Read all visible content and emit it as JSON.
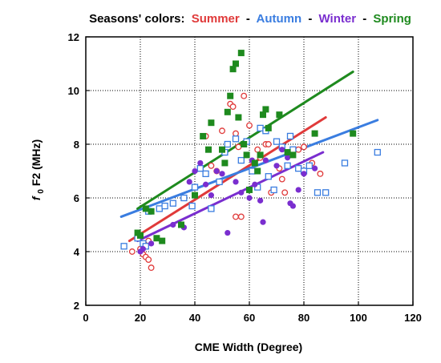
{
  "chart_data": {
    "type": "scatter",
    "legend_title": "Seasons' colors:",
    "separator": "-",
    "xlabel": "CME Width (Degree)",
    "ylabel_main": "f",
    "ylabel_sub": "0",
    "ylabel_rest": "F2 (MHz)",
    "xlim": [
      0,
      120
    ],
    "ylim": [
      2,
      12
    ],
    "x_ticks": [
      0,
      20,
      40,
      60,
      80,
      100,
      120
    ],
    "y_ticks": [
      2,
      4,
      6,
      8,
      10,
      12
    ],
    "grid": "dotted",
    "legend_position": "top",
    "series": [
      {
        "name": "Summer",
        "color": "#e03a3a",
        "marker": "open-circle",
        "points": [
          [
            17,
            4.0
          ],
          [
            20,
            4.1
          ],
          [
            21,
            3.9
          ],
          [
            22,
            3.8
          ],
          [
            23,
            3.7
          ],
          [
            24,
            3.4
          ],
          [
            21,
            4.2
          ],
          [
            23,
            4.4
          ],
          [
            44,
            8.3
          ],
          [
            46,
            7.2
          ],
          [
            48,
            7.0
          ],
          [
            50,
            8.5
          ],
          [
            53,
            9.5
          ],
          [
            54,
            9.4
          ],
          [
            55,
            8.4
          ],
          [
            56,
            7.9
          ],
          [
            58,
            9.8
          ],
          [
            60,
            8.7
          ],
          [
            55,
            5.3
          ],
          [
            57,
            5.3
          ],
          [
            63,
            7.8
          ],
          [
            64,
            7.5
          ],
          [
            66,
            8.0
          ],
          [
            67,
            8.0
          ],
          [
            68,
            6.2
          ],
          [
            71,
            7.1
          ],
          [
            72,
            6.7
          ],
          [
            73,
            6.2
          ],
          [
            78,
            7.8
          ],
          [
            80,
            7.9
          ],
          [
            83,
            7.3
          ],
          [
            84,
            8.4
          ],
          [
            86,
            6.9
          ]
        ]
      },
      {
        "name": "Autumn",
        "color": "#3a7de0",
        "marker": "open-square",
        "points": [
          [
            14,
            4.2
          ],
          [
            19,
            4.5
          ],
          [
            21,
            4.3
          ],
          [
            22,
            4.2
          ],
          [
            23,
            5.5
          ],
          [
            27,
            5.6
          ],
          [
            29,
            5.7
          ],
          [
            32,
            5.8
          ],
          [
            36,
            6.0
          ],
          [
            39,
            5.7
          ],
          [
            40,
            6.4
          ],
          [
            42,
            7.1
          ],
          [
            44,
            6.9
          ],
          [
            46,
            5.6
          ],
          [
            49,
            6.6
          ],
          [
            51,
            7.7
          ],
          [
            52,
            8.0
          ],
          [
            55,
            8.2
          ],
          [
            57,
            7.4
          ],
          [
            59,
            8.1
          ],
          [
            61,
            7.0
          ],
          [
            63,
            6.4
          ],
          [
            64,
            8.6
          ],
          [
            66,
            8.5
          ],
          [
            67,
            6.8
          ],
          [
            69,
            6.3
          ],
          [
            70,
            8.1
          ],
          [
            72,
            7.9
          ],
          [
            74,
            7.2
          ],
          [
            75,
            8.3
          ],
          [
            76,
            7.8
          ],
          [
            78,
            7.1
          ],
          [
            80,
            7.0
          ],
          [
            82,
            7.2
          ],
          [
            85,
            6.2
          ],
          [
            88,
            6.2
          ],
          [
            95,
            7.3
          ],
          [
            107,
            7.7
          ]
        ]
      },
      {
        "name": "Winter",
        "color": "#7a2ecf",
        "marker": "filled-circle",
        "points": [
          [
            20,
            4.0
          ],
          [
            21,
            4.1
          ],
          [
            24,
            4.3
          ],
          [
            32,
            5.0
          ],
          [
            36,
            4.9
          ],
          [
            38,
            6.6
          ],
          [
            40,
            7.0
          ],
          [
            42,
            7.3
          ],
          [
            44,
            6.5
          ],
          [
            46,
            6.1
          ],
          [
            48,
            7.0
          ],
          [
            50,
            6.9
          ],
          [
            52,
            4.7
          ],
          [
            55,
            6.6
          ],
          [
            57,
            6.2
          ],
          [
            60,
            6.0
          ],
          [
            61,
            7.4
          ],
          [
            62,
            6.5
          ],
          [
            64,
            5.9
          ],
          [
            65,
            5.1
          ],
          [
            66,
            7.4
          ],
          [
            70,
            7.2
          ],
          [
            72,
            7.8
          ],
          [
            74,
            7.5
          ],
          [
            75,
            5.8
          ],
          [
            76,
            5.7
          ],
          [
            78,
            6.3
          ],
          [
            80,
            6.9
          ],
          [
            84,
            7.1
          ]
        ]
      },
      {
        "name": "Spring",
        "color": "#1e8a1e",
        "marker": "filled-square",
        "points": [
          [
            19,
            4.7
          ],
          [
            20,
            4.6
          ],
          [
            22,
            5.6
          ],
          [
            24,
            5.5
          ],
          [
            26,
            4.5
          ],
          [
            28,
            4.4
          ],
          [
            35,
            5.0
          ],
          [
            40,
            6.1
          ],
          [
            43,
            8.3
          ],
          [
            45,
            7.8
          ],
          [
            46,
            8.8
          ],
          [
            50,
            7.8
          ],
          [
            51,
            7.3
          ],
          [
            52,
            9.2
          ],
          [
            53,
            9.8
          ],
          [
            54,
            10.8
          ],
          [
            55,
            11.0
          ],
          [
            56,
            9.0
          ],
          [
            57,
            11.4
          ],
          [
            58,
            8.0
          ],
          [
            59,
            7.6
          ],
          [
            60,
            6.3
          ],
          [
            62,
            7.3
          ],
          [
            63,
            7.0
          ],
          [
            64,
            7.6
          ],
          [
            65,
            9.1
          ],
          [
            66,
            9.3
          ],
          [
            67,
            8.6
          ],
          [
            71,
            9.1
          ],
          [
            74,
            7.7
          ],
          [
            76,
            7.6
          ],
          [
            84,
            8.4
          ],
          [
            98,
            8.4
          ]
        ]
      }
    ],
    "trend_lines": [
      {
        "series": "Summer",
        "x": [
          16,
          88
        ],
        "y": [
          4.4,
          9.0
        ]
      },
      {
        "series": "Autumn",
        "x": [
          13,
          107
        ],
        "y": [
          5.3,
          8.9
        ]
      },
      {
        "series": "Winter",
        "x": [
          19,
          87
        ],
        "y": [
          4.4,
          7.7
        ]
      },
      {
        "series": "Spring",
        "x": [
          19,
          98
        ],
        "y": [
          5.6,
          10.7
        ]
      }
    ]
  }
}
